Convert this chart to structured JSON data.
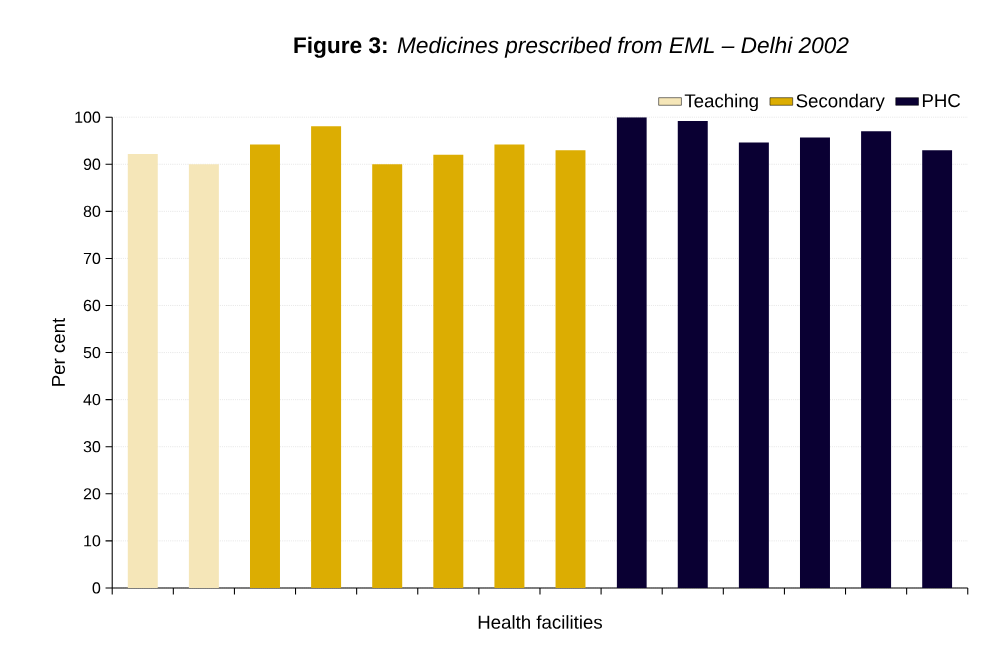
{
  "chart_data": {
    "type": "bar",
    "title": "**Figure 3:** *Medicines prescribed from EML – Delhi 2002*",
    "xlabel": "Health facilities",
    "ylabel": "Per cent",
    "categories": [
      null,
      null,
      null,
      null,
      null,
      null,
      null,
      null,
      null,
      null,
      null,
      null,
      null,
      null
    ],
    "series": [
      {
        "name": "Teaching",
        "color": "#f5e6b8",
        "values": [
          92.2,
          90,
          null,
          null,
          null,
          null,
          null,
          null,
          null,
          null,
          null,
          null,
          null,
          null
        ]
      },
      {
        "name": "Secondary",
        "color": "#dcad02",
        "values": [
          null,
          null,
          94.2,
          98.1,
          90,
          92,
          94.2,
          93,
          null,
          null,
          null,
          null,
          null,
          null
        ]
      },
      {
        "name": "PHC",
        "color": "#0a0033",
        "values": [
          null,
          null,
          null,
          null,
          null,
          null,
          null,
          null,
          100,
          99.2,
          94.6,
          95.7,
          97,
          93
        ]
      }
    ],
    "ylim": [
      0,
      100
    ],
    "yticks": [
      0,
      10,
      20,
      30,
      40,
      50,
      60,
      70,
      80,
      90,
      100
    ],
    "grid": "y",
    "legend": "top right",
    "tick_labels": "y"
  }
}
